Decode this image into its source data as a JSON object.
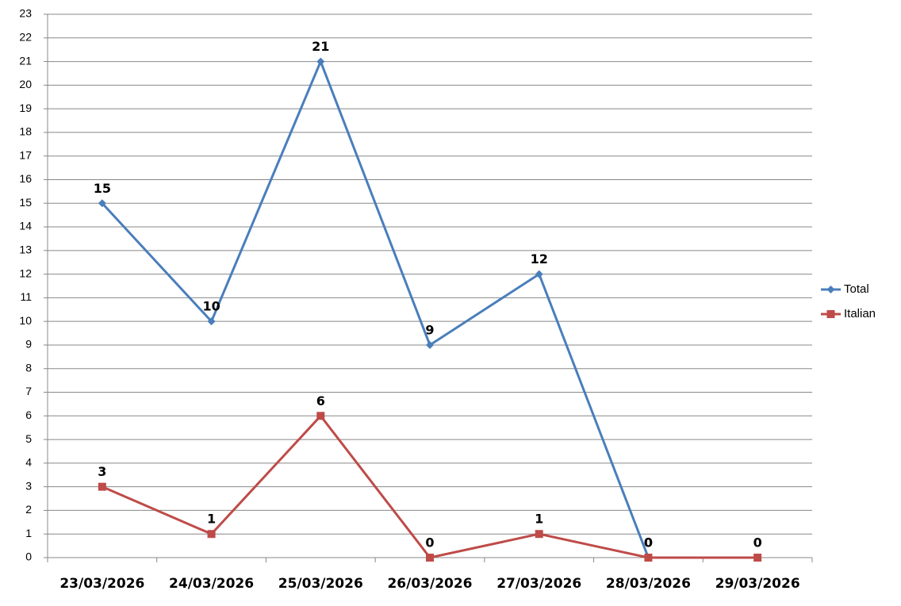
{
  "chart_data": {
    "type": "line",
    "categories": [
      "23/03/2026",
      "24/03/2026",
      "25/03/2026",
      "26/03/2026",
      "27/03/2026",
      "28/03/2026",
      "29/03/2026"
    ],
    "series": [
      {
        "name": "Total",
        "color": "#4a7ebb",
        "marker": "diamond",
        "values": [
          15,
          10,
          21,
          9,
          12,
          0,
          null
        ]
      },
      {
        "name": "Italian",
        "color": "#be4b48",
        "marker": "square",
        "values": [
          3,
          1,
          6,
          0,
          1,
          0,
          0
        ]
      }
    ],
    "ylim": [
      0,
      23
    ],
    "yticks": [
      0,
      1,
      2,
      3,
      4,
      5,
      6,
      7,
      8,
      9,
      10,
      11,
      12,
      13,
      14,
      15,
      16,
      17,
      18,
      19,
      20,
      21,
      22,
      23
    ],
    "grid": true,
    "legend": "right",
    "data_labels": true
  }
}
